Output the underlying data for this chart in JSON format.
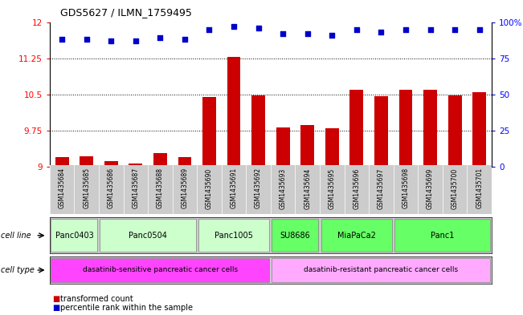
{
  "title": "GDS5627 / ILMN_1759495",
  "samples": [
    "GSM1435684",
    "GSM1435685",
    "GSM1435686",
    "GSM1435687",
    "GSM1435688",
    "GSM1435689",
    "GSM1435690",
    "GSM1435691",
    "GSM1435692",
    "GSM1435693",
    "GSM1435694",
    "GSM1435695",
    "GSM1435696",
    "GSM1435697",
    "GSM1435698",
    "GSM1435699",
    "GSM1435700",
    "GSM1435701"
  ],
  "transformed_count": [
    9.2,
    9.22,
    9.12,
    9.07,
    9.28,
    9.2,
    10.45,
    11.28,
    10.48,
    9.82,
    9.87,
    9.8,
    10.6,
    10.47,
    10.6,
    10.6,
    10.48,
    10.55
  ],
  "percentile_rank": [
    88,
    88,
    87,
    87,
    89,
    88,
    95,
    97,
    96,
    92,
    92,
    91,
    95,
    93,
    95,
    95,
    95,
    95
  ],
  "bar_color": "#cc0000",
  "dot_color": "#0000cc",
  "ylim_left": [
    9.0,
    12.0
  ],
  "ylim_right": [
    0,
    100
  ],
  "yticks_left": [
    9.0,
    9.75,
    10.5,
    11.25,
    12.0
  ],
  "ytick_labels_left": [
    "9",
    "9.75",
    "10.5",
    "11.25",
    "12"
  ],
  "yticks_right": [
    0,
    25,
    50,
    75,
    100
  ],
  "ytick_labels_right": [
    "0",
    "25",
    "50",
    "75",
    "100%"
  ],
  "cell_lines": [
    {
      "label": "Panc0403",
      "start": 0,
      "end": 1,
      "color": "#ccffcc"
    },
    {
      "label": "Panc0504",
      "start": 2,
      "end": 5,
      "color": "#ccffcc"
    },
    {
      "label": "Panc1005",
      "start": 6,
      "end": 8,
      "color": "#ccffcc"
    },
    {
      "label": "SU8686",
      "start": 9,
      "end": 10,
      "color": "#66ff66"
    },
    {
      "label": "MiaPaCa2",
      "start": 11,
      "end": 13,
      "color": "#66ff66"
    },
    {
      "label": "Panc1",
      "start": 14,
      "end": 17,
      "color": "#66ff66"
    }
  ],
  "cell_types": [
    {
      "label": "dasatinib-sensitive pancreatic cancer cells",
      "start": 0,
      "end": 8,
      "color": "#ff44ff"
    },
    {
      "label": "dasatinib-resistant pancreatic cancer cells",
      "start": 9,
      "end": 17,
      "color": "#ffaaff"
    }
  ],
  "bg_color": "#ffffff",
  "label_bg_color": "#cccccc",
  "n_samples": 18
}
